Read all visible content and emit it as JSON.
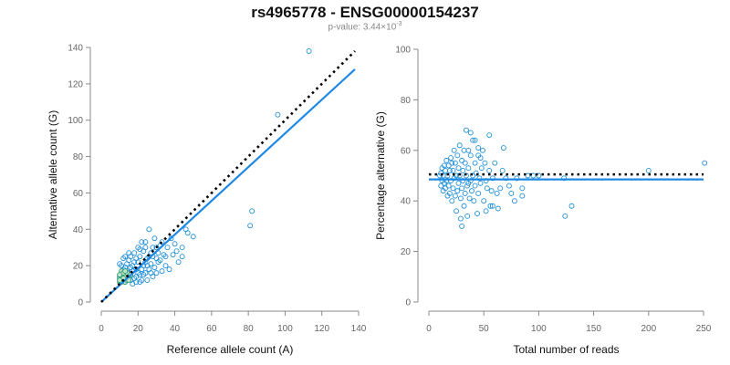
{
  "title": "rs4965778 - ENSG00000154237",
  "subtitle": {
    "prefix": "p-value: 3.44×10",
    "exponent": "-3"
  },
  "chart_data": [
    {
      "type": "scatter",
      "name": "left",
      "xlabel": "Reference allele count (A)",
      "ylabel": "Alternative allele count (G)",
      "xlim": [
        0,
        140
      ],
      "ylim": [
        0,
        140
      ],
      "xticks": [
        0,
        20,
        40,
        60,
        80,
        100,
        120,
        140
      ],
      "yticks": [
        0,
        20,
        40,
        60,
        80,
        100,
        120,
        140
      ],
      "reference_line": {
        "style": "dotted",
        "x": [
          0,
          138
        ],
        "y": [
          0,
          138
        ]
      },
      "regression_line": {
        "style": "solid",
        "x": [
          0,
          138
        ],
        "y": [
          0,
          128
        ]
      },
      "points": [
        [
          113,
          138
        ],
        [
          96,
          103
        ],
        [
          82,
          50
        ],
        [
          81,
          42
        ],
        [
          50,
          36
        ],
        [
          47,
          38
        ],
        [
          46,
          40
        ],
        [
          44,
          30
        ],
        [
          42,
          22
        ],
        [
          40,
          32
        ],
        [
          38,
          35
        ],
        [
          36,
          30
        ],
        [
          34,
          26
        ],
        [
          33,
          33
        ],
        [
          32,
          31
        ],
        [
          31,
          27
        ],
        [
          30,
          24
        ],
        [
          29,
          35
        ],
        [
          28,
          30
        ],
        [
          27,
          27
        ],
        [
          26,
          25
        ],
        [
          25,
          20
        ],
        [
          24,
          30
        ],
        [
          23,
          28
        ],
        [
          22,
          33
        ],
        [
          21,
          25
        ],
        [
          20,
          22
        ],
        [
          19,
          18
        ],
        [
          18,
          27
        ],
        [
          17,
          20
        ],
        [
          16,
          25
        ],
        [
          15,
          23
        ],
        [
          14,
          21
        ],
        [
          13,
          19
        ],
        [
          12,
          24
        ],
        [
          11,
          20
        ],
        [
          24,
          33
        ],
        [
          26,
          40
        ],
        [
          35,
          20
        ],
        [
          37,
          18
        ],
        [
          30,
          16
        ],
        [
          28,
          14
        ],
        [
          25,
          12
        ],
        [
          23,
          15
        ],
        [
          21,
          11
        ],
        [
          19,
          14
        ],
        [
          17,
          10
        ],
        [
          16,
          12
        ],
        [
          15,
          16
        ],
        [
          14,
          13
        ],
        [
          13,
          11
        ],
        [
          12,
          15
        ],
        [
          11,
          12
        ],
        [
          10,
          14
        ],
        [
          22,
          18
        ],
        [
          20,
          16
        ],
        [
          18,
          13
        ],
        [
          27,
          21
        ],
        [
          29,
          19
        ],
        [
          31,
          22
        ],
        [
          33,
          17
        ],
        [
          35,
          25
        ],
        [
          22,
          12
        ],
        [
          24,
          16
        ],
        [
          26,
          18
        ],
        [
          19,
          24
        ],
        [
          21,
          29
        ],
        [
          17,
          17
        ],
        [
          39,
          26
        ],
        [
          41,
          28
        ],
        [
          44,
          25
        ],
        [
          13,
          25
        ],
        [
          15,
          27
        ],
        [
          18,
          22
        ],
        [
          20,
          30
        ],
        [
          23,
          20
        ],
        [
          27,
          16
        ],
        [
          30,
          30
        ],
        [
          32,
          23
        ],
        [
          16,
          19
        ],
        [
          14,
          17
        ],
        [
          12,
          18
        ],
        [
          10,
          21
        ],
        [
          19,
          11
        ],
        [
          21,
          15
        ],
        [
          25,
          24
        ],
        [
          28,
          25
        ],
        [
          24,
          22
        ]
      ],
      "highlight_points": [
        [
          10,
          13
        ],
        [
          11,
          15
        ],
        [
          12,
          12
        ],
        [
          13,
          14
        ],
        [
          14,
          16
        ],
        [
          10,
          11
        ],
        [
          11,
          17
        ],
        [
          12,
          16
        ],
        [
          13,
          11
        ],
        [
          14,
          12
        ],
        [
          15,
          14
        ],
        [
          10,
          15
        ],
        [
          11,
          11
        ],
        [
          12,
          13
        ],
        [
          13,
          17
        ],
        [
          15,
          12
        ],
        [
          16,
          15
        ],
        [
          10,
          12
        ]
      ]
    },
    {
      "type": "scatter",
      "name": "right",
      "xlabel": "Total number of reads",
      "ylabel": "Percentage alternative (G)",
      "xlim": [
        0,
        250
      ],
      "ylim": [
        0,
        100
      ],
      "xticks": [
        0,
        50,
        100,
        150,
        200,
        250
      ],
      "yticks": [
        0,
        20,
        40,
        60,
        80,
        100
      ],
      "reference_line": {
        "style": "dotted",
        "y": 50.5,
        "x": [
          0,
          250
        ]
      },
      "regression_line": {
        "style": "solid",
        "y": 48.5,
        "x": [
          0,
          250
        ]
      },
      "points": [
        [
          251,
          55
        ],
        [
          200,
          52
        ],
        [
          130,
          38
        ],
        [
          124,
          34
        ],
        [
          123,
          49
        ],
        [
          100,
          50
        ],
        [
          95,
          50
        ],
        [
          90,
          50
        ],
        [
          85,
          45
        ],
        [
          85,
          42
        ],
        [
          80,
          49
        ],
        [
          78,
          40
        ],
        [
          75,
          43
        ],
        [
          73,
          46
        ],
        [
          70,
          49
        ],
        [
          68,
          61
        ],
        [
          67,
          52
        ],
        [
          65,
          45
        ],
        [
          63,
          37
        ],
        [
          62,
          43
        ],
        [
          60,
          55
        ],
        [
          58,
          49
        ],
        [
          57,
          44
        ],
        [
          56,
          38
        ],
        [
          55,
          52
        ],
        [
          55,
          66
        ],
        [
          53,
          45
        ],
        [
          52,
          48
        ],
        [
          51,
          55
        ],
        [
          50,
          40
        ],
        [
          49,
          60
        ],
        [
          48,
          53
        ],
        [
          47,
          47
        ],
        [
          46,
          49
        ],
        [
          45,
          43
        ],
        [
          45,
          58
        ],
        [
          44,
          35
        ],
        [
          43,
          51
        ],
        [
          42,
          55
        ],
        [
          42,
          46
        ],
        [
          41,
          40
        ],
        [
          40,
          64
        ],
        [
          40,
          50
        ],
        [
          39,
          44
        ],
        [
          38,
          58
        ],
        [
          38,
          48
        ],
        [
          37,
          41
        ],
        [
          36,
          53
        ],
        [
          36,
          60
        ],
        [
          35,
          46
        ],
        [
          35,
          34
        ],
        [
          34,
          68
        ],
        [
          34,
          50
        ],
        [
          33,
          43
        ],
        [
          33,
          55
        ],
        [
          32,
          60
        ],
        [
          32,
          38
        ],
        [
          31,
          48
        ],
        [
          31,
          52
        ],
        [
          30,
          45
        ],
        [
          30,
          56
        ],
        [
          29,
          33
        ],
        [
          29,
          41
        ],
        [
          28,
          50
        ],
        [
          28,
          62
        ],
        [
          27,
          47
        ],
        [
          27,
          53
        ],
        [
          26,
          44
        ],
        [
          26,
          58
        ],
        [
          25,
          50
        ],
        [
          25,
          36
        ],
        [
          24,
          55
        ],
        [
          24,
          42
        ],
        [
          23,
          49
        ],
        [
          23,
          60
        ],
        [
          22,
          52
        ],
        [
          22,
          45
        ],
        [
          21,
          55
        ],
        [
          21,
          40
        ],
        [
          20,
          48
        ],
        [
          20,
          57
        ],
        [
          19,
          43
        ],
        [
          19,
          52
        ],
        [
          18,
          46
        ],
        [
          18,
          54
        ],
        [
          17,
          50
        ],
        [
          17,
          42
        ],
        [
          16,
          56
        ],
        [
          16,
          48
        ],
        [
          15,
          52
        ],
        [
          15,
          45
        ],
        [
          14,
          54
        ],
        [
          14,
          47
        ],
        [
          13,
          50
        ],
        [
          13,
          44
        ],
        [
          12,
          53
        ],
        [
          12,
          48
        ],
        [
          11,
          51
        ],
        [
          11,
          46
        ],
        [
          10,
          50
        ],
        [
          30,
          30
        ],
        [
          38,
          67
        ],
        [
          42,
          64
        ],
        [
          47,
          57
        ],
        [
          52,
          36
        ],
        [
          58,
          38
        ],
        [
          45,
          61
        ],
        [
          36,
          47
        ]
      ]
    }
  ]
}
